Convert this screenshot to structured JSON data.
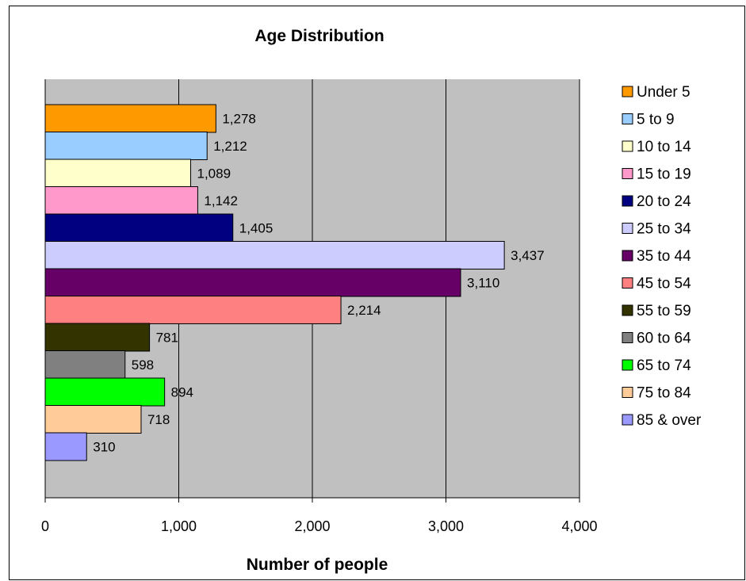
{
  "chart_data": {
    "type": "bar",
    "orientation": "horizontal",
    "title": "Age Distribution",
    "xlabel": "Number of people",
    "ylabel": "",
    "xlim": [
      0,
      4000
    ],
    "x_ticks": [
      "0",
      "1,000",
      "2,000",
      "3,000",
      "4,000"
    ],
    "grid": "vertical major gridlines",
    "legend_position": "right",
    "plot_background": "#c0c0c0",
    "categories": [
      "Under 5",
      "5 to 9",
      "10 to 14",
      "15 to 19",
      "20 to 24",
      "25 to 34",
      "35 to 44",
      "45 to 54",
      "55 to 59",
      "60 to 64",
      "65 to 74",
      "75 to 84",
      "85 & over"
    ],
    "values": [
      1278,
      1212,
      1089,
      1142,
      1405,
      3437,
      3110,
      2214,
      781,
      598,
      894,
      718,
      310
    ],
    "value_labels": [
      "1,278",
      "1,212",
      "1,089",
      "1,142",
      "1,405",
      "3,437",
      "3,110",
      "2,214",
      "781",
      "598",
      "894",
      "718",
      "310"
    ],
    "colors": [
      "#ff9900",
      "#99ccff",
      "#ffffcc",
      "#ff99cc",
      "#000080",
      "#ccccff",
      "#660066",
      "#ff8080",
      "#333300",
      "#808080",
      "#00ff00",
      "#ffcc99",
      "#9999ff"
    ]
  }
}
